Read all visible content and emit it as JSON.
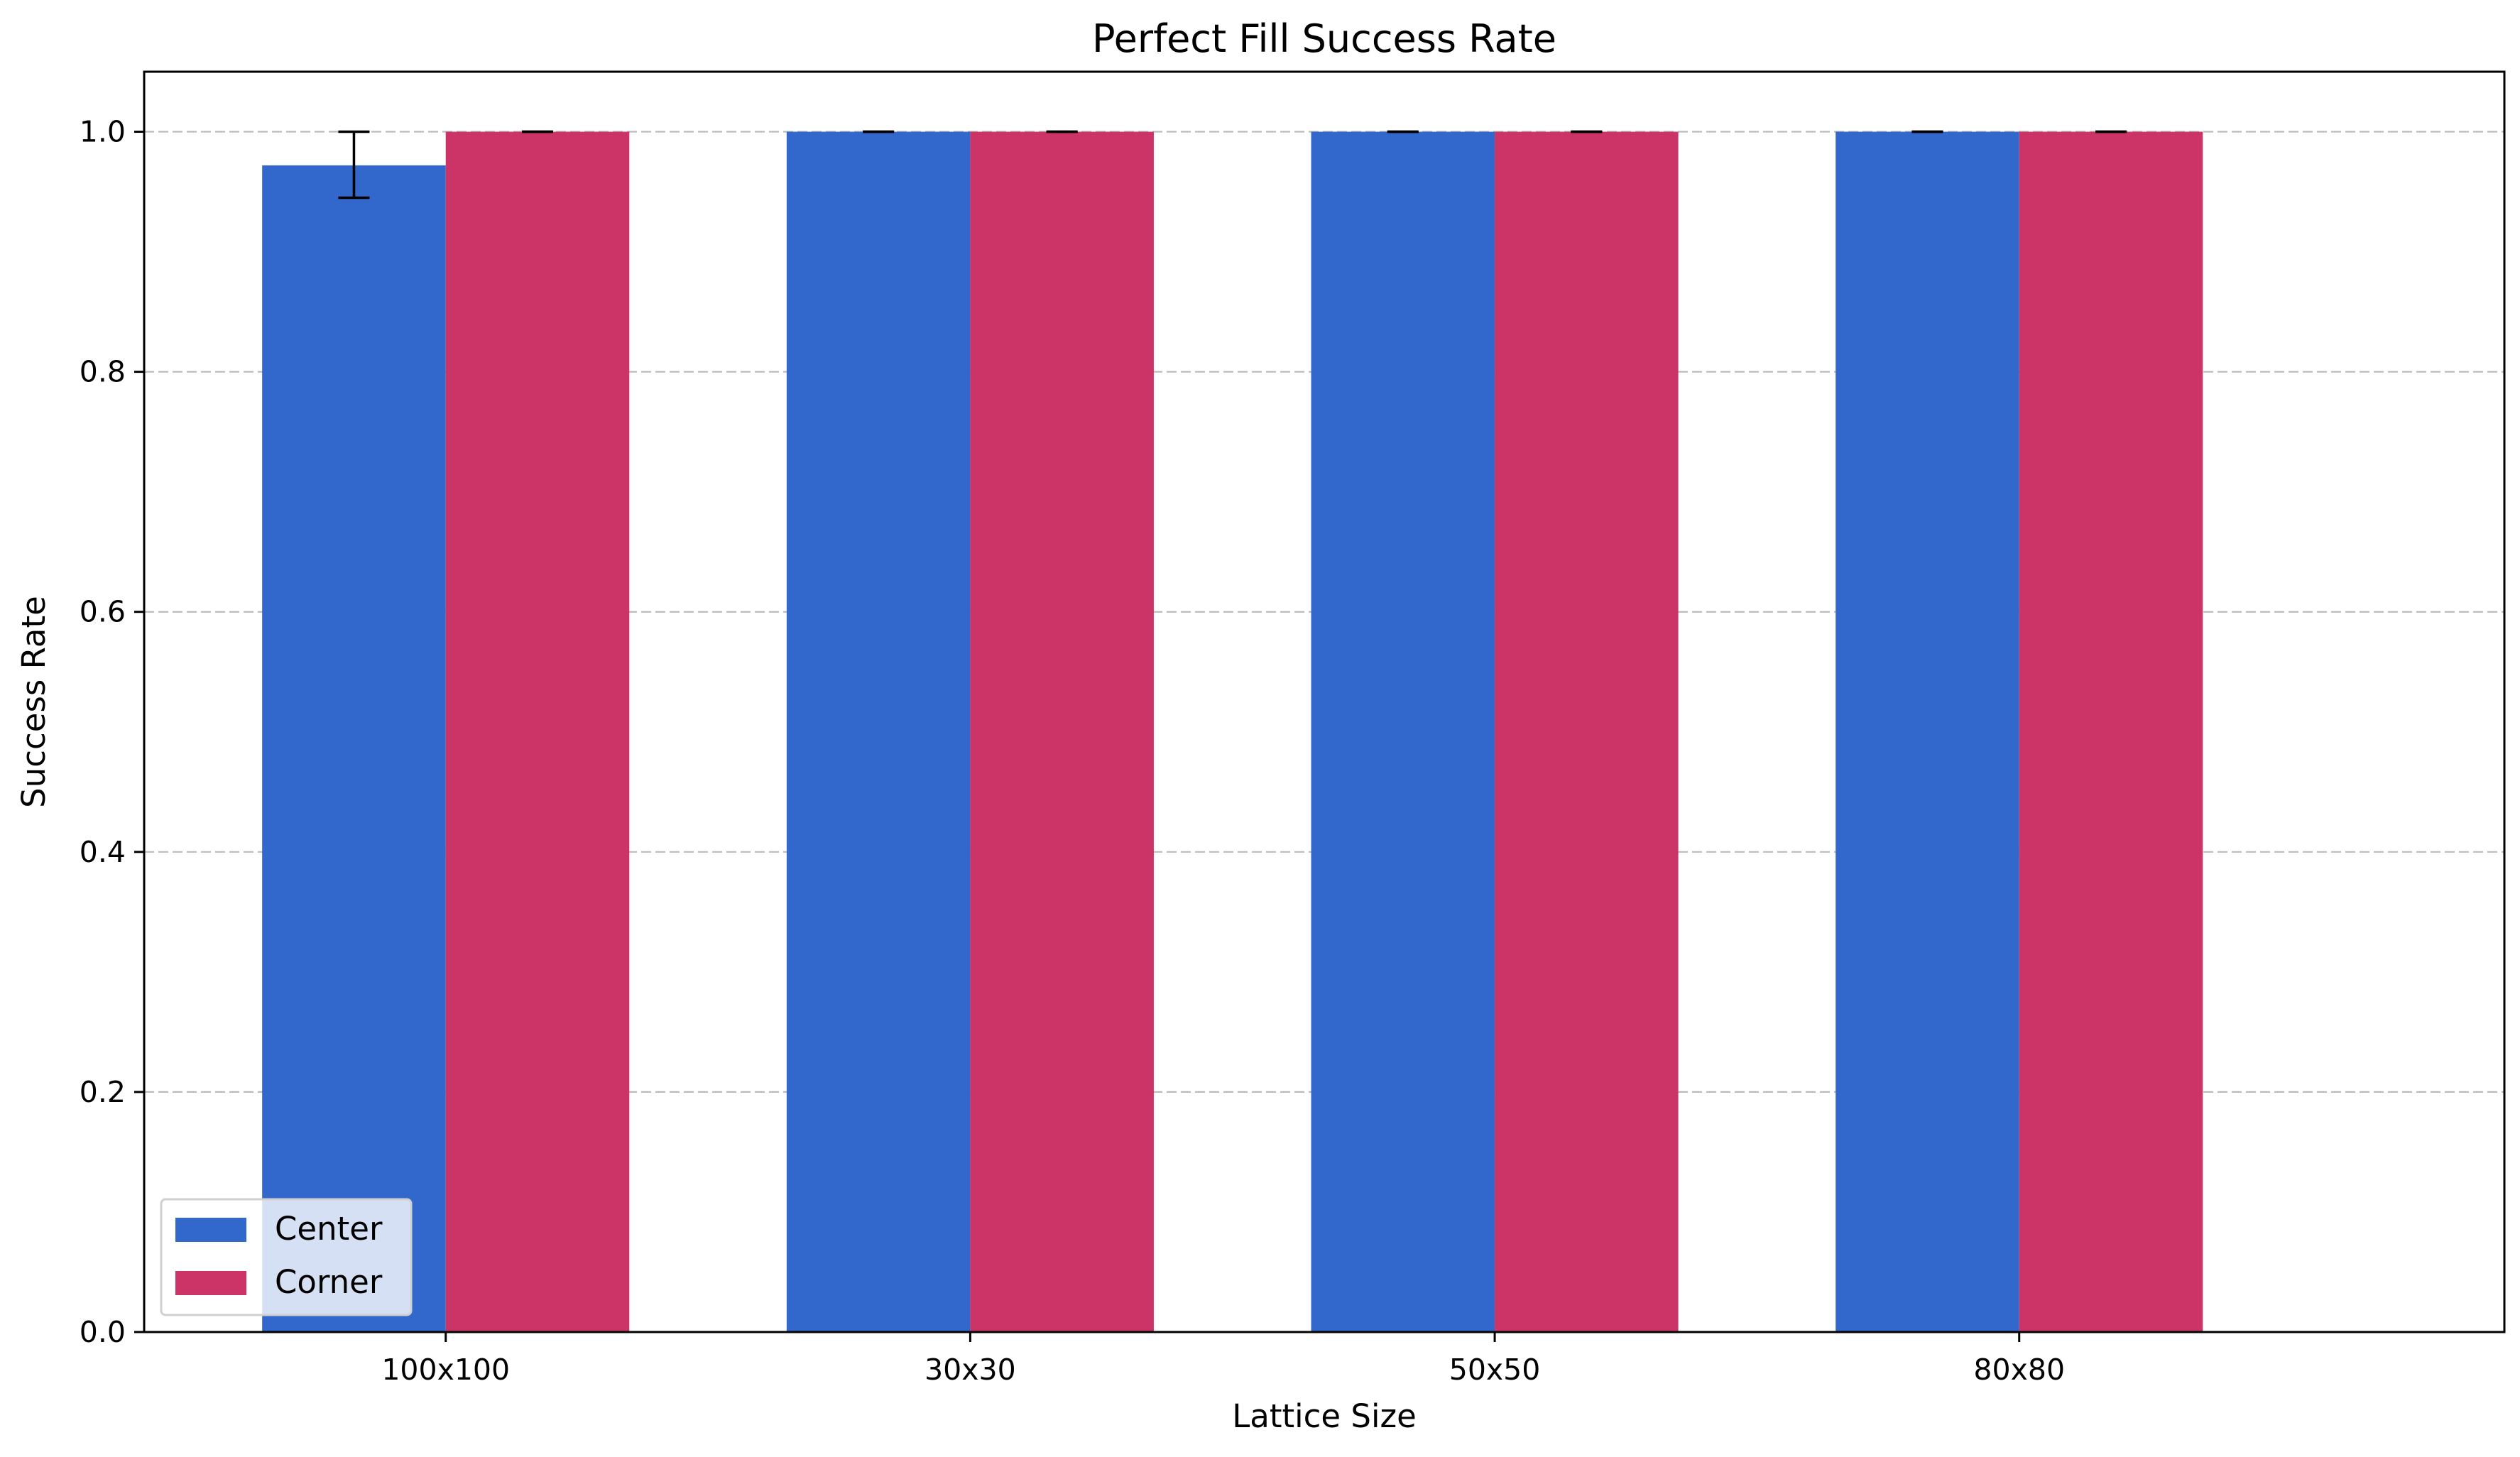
{
  "chart_data": {
    "type": "bar",
    "title": "Perfect Fill Success Rate",
    "xlabel": "Lattice Size",
    "ylabel": "Success Rate",
    "categories": [
      "100x100",
      "30x30",
      "50x50",
      "80x80"
    ],
    "series": [
      {
        "name": "Center",
        "color": "#3267cc",
        "values": [
          0.972,
          1.0,
          1.0,
          1.0
        ],
        "error_low": [
          0.027,
          0.0,
          0.0,
          0.0
        ],
        "error_high": [
          0.028,
          0.0,
          0.0,
          0.0
        ]
      },
      {
        "name": "Corner",
        "color": "#cc3366",
        "values": [
          1.0,
          1.0,
          1.0,
          1.0
        ],
        "error_low": [
          0.0,
          0.0,
          0.0,
          0.0
        ],
        "error_high": [
          0.0,
          0.0,
          0.0,
          0.0
        ]
      }
    ],
    "ylim": [
      0,
      1.05
    ],
    "yticks": [
      0.0,
      0.2,
      0.4,
      0.6,
      0.8,
      1.0
    ],
    "ytick_labels": [
      "0.0",
      "0.2",
      "0.4",
      "0.6",
      "0.8",
      "1.0"
    ],
    "grid": "y-dashed",
    "legend_position": "lower-left"
  }
}
